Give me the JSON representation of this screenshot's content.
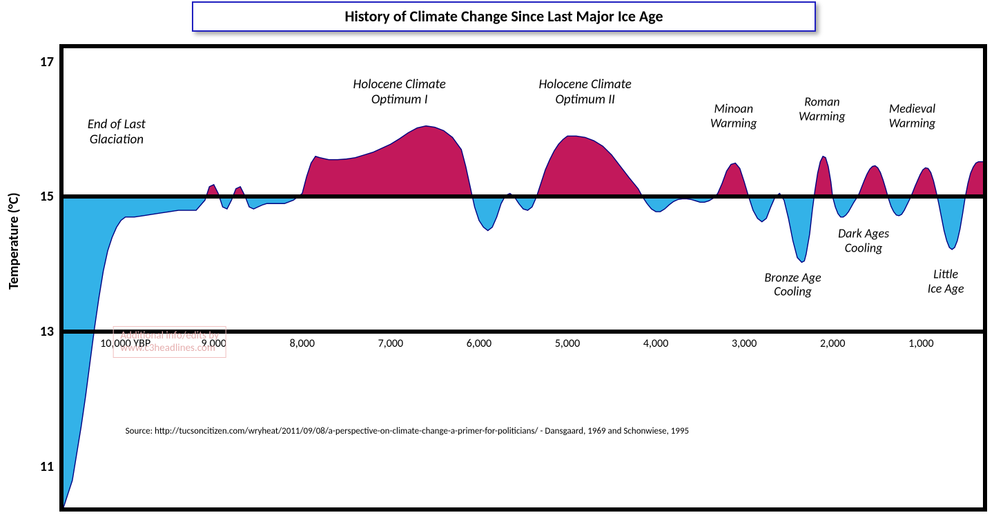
{
  "title": "History of Climate Change Since Last Major Ice Age",
  "title_border_color": "#2020c0",
  "background_color": "#ffffff",
  "chart": {
    "type": "area-baseline",
    "x_domain_ybp": [
      10700,
      300
    ],
    "y_domain_c": [
      10.4,
      17.2
    ],
    "baseline_c": 15,
    "above_fill": "#c2185b",
    "below_fill": "#33b2e8",
    "stroke": "#000080",
    "stroke_width": 1.4,
    "plot_border": "#000000",
    "plot_border_width": 6,
    "ref_lines_c": [
      15,
      13
    ],
    "ref_line_width": 6,
    "ref_line_color": "#000000",
    "y_ticks": [
      17,
      15,
      13,
      11
    ],
    "y_tick_fontsize": 20,
    "y_tick_fontweight": 700,
    "x_ticks_ybp": [
      10000,
      9000,
      8000,
      7000,
      6000,
      5000,
      4000,
      3000,
      2000,
      1000
    ],
    "x_tick_labels": [
      "10,000  YBP",
      "9,000",
      "8,000",
      "7,000",
      "6,000",
      "5,000",
      "4,000",
      "3,000",
      "2,000",
      "1,000"
    ],
    "x_tick_fontsize": 16,
    "x_tick_y_c": 13,
    "ylabel": "Temperature (°C)",
    "ylabel_fontsize": 20,
    "ylabel_fontweight": 700,
    "series_ybp_temp": [
      [
        10700,
        10.4
      ],
      [
        10650,
        10.6
      ],
      [
        10600,
        10.8
      ],
      [
        10550,
        11.2
      ],
      [
        10500,
        11.6
      ],
      [
        10450,
        12.05
      ],
      [
        10400,
        12.55
      ],
      [
        10350,
        13.05
      ],
      [
        10300,
        13.5
      ],
      [
        10250,
        13.9
      ],
      [
        10200,
        14.2
      ],
      [
        10150,
        14.4
      ],
      [
        10100,
        14.55
      ],
      [
        10050,
        14.65
      ],
      [
        10000,
        14.7
      ],
      [
        9900,
        14.7
      ],
      [
        9800,
        14.72
      ],
      [
        9700,
        14.74
      ],
      [
        9600,
        14.76
      ],
      [
        9500,
        14.78
      ],
      [
        9400,
        14.8
      ],
      [
        9300,
        14.8
      ],
      [
        9200,
        14.8
      ],
      [
        9100,
        14.95
      ],
      [
        9050,
        15.15
      ],
      [
        9000,
        15.18
      ],
      [
        8950,
        15.05
      ],
      [
        8900,
        14.85
      ],
      [
        8850,
        14.82
      ],
      [
        8800,
        14.95
      ],
      [
        8750,
        15.12
      ],
      [
        8700,
        15.15
      ],
      [
        8650,
        15.02
      ],
      [
        8600,
        14.85
      ],
      [
        8550,
        14.82
      ],
      [
        8500,
        14.85
      ],
      [
        8450,
        14.88
      ],
      [
        8400,
        14.9
      ],
      [
        8300,
        14.9
      ],
      [
        8200,
        14.9
      ],
      [
        8100,
        14.95
      ],
      [
        8000,
        15.05
      ],
      [
        7950,
        15.3
      ],
      [
        7900,
        15.5
      ],
      [
        7850,
        15.6
      ],
      [
        7800,
        15.58
      ],
      [
        7700,
        15.55
      ],
      [
        7600,
        15.55
      ],
      [
        7500,
        15.56
      ],
      [
        7400,
        15.58
      ],
      [
        7300,
        15.62
      ],
      [
        7200,
        15.66
      ],
      [
        7100,
        15.72
      ],
      [
        7000,
        15.78
      ],
      [
        6900,
        15.86
      ],
      [
        6800,
        15.95
      ],
      [
        6700,
        16.02
      ],
      [
        6600,
        16.05
      ],
      [
        6500,
        16.03
      ],
      [
        6400,
        15.98
      ],
      [
        6300,
        15.88
      ],
      [
        6200,
        15.7
      ],
      [
        6150,
        15.45
      ],
      [
        6100,
        15.15
      ],
      [
        6050,
        14.85
      ],
      [
        6000,
        14.65
      ],
      [
        5950,
        14.55
      ],
      [
        5900,
        14.5
      ],
      [
        5850,
        14.55
      ],
      [
        5800,
        14.7
      ],
      [
        5750,
        14.9
      ],
      [
        5700,
        15.02
      ],
      [
        5650,
        15.05
      ],
      [
        5600,
        15.0
      ],
      [
        5550,
        14.9
      ],
      [
        5500,
        14.82
      ],
      [
        5450,
        14.8
      ],
      [
        5400,
        14.85
      ],
      [
        5350,
        15.0
      ],
      [
        5300,
        15.2
      ],
      [
        5250,
        15.4
      ],
      [
        5200,
        15.55
      ],
      [
        5150,
        15.68
      ],
      [
        5100,
        15.78
      ],
      [
        5050,
        15.85
      ],
      [
        5000,
        15.9
      ],
      [
        4900,
        15.9
      ],
      [
        4800,
        15.88
      ],
      [
        4700,
        15.83
      ],
      [
        4600,
        15.75
      ],
      [
        4500,
        15.62
      ],
      [
        4400,
        15.45
      ],
      [
        4300,
        15.28
      ],
      [
        4200,
        15.12
      ],
      [
        4150,
        15.0
      ],
      [
        4100,
        14.9
      ],
      [
        4050,
        14.82
      ],
      [
        4000,
        14.78
      ],
      [
        3950,
        14.78
      ],
      [
        3900,
        14.82
      ],
      [
        3850,
        14.88
      ],
      [
        3800,
        14.93
      ],
      [
        3750,
        14.96
      ],
      [
        3700,
        14.97
      ],
      [
        3650,
        14.97
      ],
      [
        3600,
        14.96
      ],
      [
        3550,
        14.94
      ],
      [
        3500,
        14.92
      ],
      [
        3450,
        14.92
      ],
      [
        3400,
        14.94
      ],
      [
        3350,
        14.98
      ],
      [
        3300,
        15.05
      ],
      [
        3250,
        15.2
      ],
      [
        3200,
        15.38
      ],
      [
        3150,
        15.48
      ],
      [
        3100,
        15.5
      ],
      [
        3050,
        15.42
      ],
      [
        3000,
        15.22
      ],
      [
        2950,
        15.0
      ],
      [
        2900,
        14.8
      ],
      [
        2850,
        14.68
      ],
      [
        2800,
        14.63
      ],
      [
        2750,
        14.68
      ],
      [
        2700,
        14.85
      ],
      [
        2650,
        15.0
      ],
      [
        2600,
        15.05
      ],
      [
        2550,
        14.95
      ],
      [
        2500,
        14.68
      ],
      [
        2450,
        14.35
      ],
      [
        2400,
        14.1
      ],
      [
        2350,
        14.03
      ],
      [
        2320,
        14.05
      ],
      [
        2300,
        14.15
      ],
      [
        2260,
        14.45
      ],
      [
        2230,
        14.8
      ],
      [
        2200,
        15.1
      ],
      [
        2170,
        15.35
      ],
      [
        2140,
        15.52
      ],
      [
        2110,
        15.6
      ],
      [
        2080,
        15.58
      ],
      [
        2050,
        15.45
      ],
      [
        2020,
        15.22
      ],
      [
        2000,
        15.0
      ],
      [
        1970,
        14.85
      ],
      [
        1940,
        14.75
      ],
      [
        1910,
        14.7
      ],
      [
        1880,
        14.7
      ],
      [
        1850,
        14.73
      ],
      [
        1820,
        14.78
      ],
      [
        1790,
        14.85
      ],
      [
        1760,
        14.92
      ],
      [
        1730,
        14.98
      ],
      [
        1700,
        15.05
      ],
      [
        1670,
        15.15
      ],
      [
        1640,
        15.25
      ],
      [
        1610,
        15.34
      ],
      [
        1580,
        15.41
      ],
      [
        1550,
        15.45
      ],
      [
        1520,
        15.46
      ],
      [
        1490,
        15.43
      ],
      [
        1460,
        15.36
      ],
      [
        1430,
        15.25
      ],
      [
        1400,
        15.12
      ],
      [
        1370,
        14.98
      ],
      [
        1340,
        14.86
      ],
      [
        1310,
        14.78
      ],
      [
        1280,
        14.73
      ],
      [
        1250,
        14.72
      ],
      [
        1220,
        14.74
      ],
      [
        1190,
        14.8
      ],
      [
        1160,
        14.88
      ],
      [
        1130,
        14.96
      ],
      [
        1100,
        15.05
      ],
      [
        1070,
        15.15
      ],
      [
        1040,
        15.24
      ],
      [
        1010,
        15.33
      ],
      [
        980,
        15.4
      ],
      [
        950,
        15.43
      ],
      [
        920,
        15.42
      ],
      [
        890,
        15.36
      ],
      [
        860,
        15.24
      ],
      [
        830,
        15.08
      ],
      [
        800,
        14.9
      ],
      [
        770,
        14.7
      ],
      [
        740,
        14.5
      ],
      [
        710,
        14.35
      ],
      [
        680,
        14.25
      ],
      [
        650,
        14.22
      ],
      [
        620,
        14.25
      ],
      [
        590,
        14.35
      ],
      [
        560,
        14.52
      ],
      [
        530,
        14.75
      ],
      [
        500,
        15.0
      ],
      [
        470,
        15.2
      ],
      [
        440,
        15.35
      ],
      [
        410,
        15.44
      ],
      [
        380,
        15.5
      ],
      [
        350,
        15.52
      ],
      [
        320,
        15.52
      ],
      [
        300,
        15.52
      ]
    ]
  },
  "annotations": [
    {
      "text": "End of Last\nGlaciation",
      "x_ybp": 10100,
      "y_c": 15.95,
      "fontsize": 19
    },
    {
      "text": "Holocene Climate\nOptimum I",
      "x_ybp": 6900,
      "y_c": 16.55,
      "fontsize": 19
    },
    {
      "text": "Holocene Climate\nOptimum II",
      "x_ybp": 4800,
      "y_c": 16.55,
      "fontsize": 19
    },
    {
      "text": "Minoan\nWarming",
      "x_ybp": 3120,
      "y_c": 16.2,
      "fontsize": 18
    },
    {
      "text": "Roman\nWarming",
      "x_ybp": 2120,
      "y_c": 16.3,
      "fontsize": 18
    },
    {
      "text": "Medieval\nWarming",
      "x_ybp": 1100,
      "y_c": 16.2,
      "fontsize": 18
    },
    {
      "text": "Bronze Age\nCooling",
      "x_ybp": 2450,
      "y_c": 13.7,
      "fontsize": 18
    },
    {
      "text": "Dark Ages\nCooling",
      "x_ybp": 1650,
      "y_c": 14.35,
      "fontsize": 18
    },
    {
      "text": "Little\nIce Age",
      "x_ybp": 720,
      "y_c": 13.75,
      "fontsize": 18
    }
  ],
  "watermark": {
    "line1": "Additional info/edits by",
    "line2": "www.c3headlines.com",
    "x_ybp": 9500,
    "y_c": 12.85
  },
  "source": {
    "text": "Source: http://tucsoncitizen.com/wryheat/2011/09/08/a-perspective-on-climate-change-a-primer-for-politicians/  -  Dansgaard, 1969 and Schonwiese, 1995",
    "x_ybp": 10000,
    "y_c": 11.6,
    "fontsize": 13
  }
}
